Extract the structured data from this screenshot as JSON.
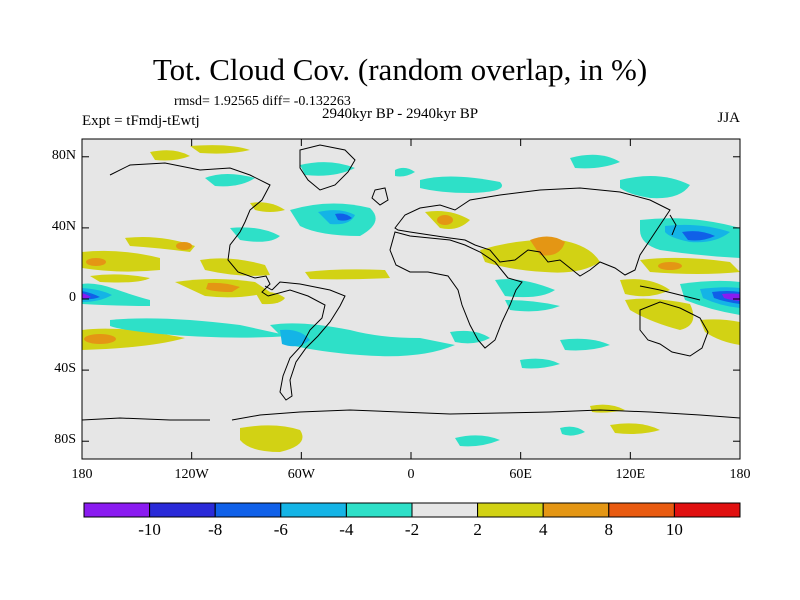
{
  "title": "Tot. Cloud Cov. (random overlap, in %)",
  "stats": "rmsd= 1.92565 diff= -0.132263",
  "expt": "Expt = tFmdj-tEwtj",
  "period": "2940kyr BP - 2940kyr BP",
  "season": "JJA",
  "axes": {
    "x_ticks": [
      {
        "label": "180",
        "lon": -180
      },
      {
        "label": "120W",
        "lon": -120
      },
      {
        "label": "60W",
        "lon": -60
      },
      {
        "label": "0",
        "lon": 0
      },
      {
        "label": "60E",
        "lon": 60
      },
      {
        "label": "120E",
        "lon": 120
      },
      {
        "label": "180",
        "lon": 180
      }
    ],
    "y_ticks": [
      {
        "label": "80N",
        "lat": 80
      },
      {
        "label": "40N",
        "lat": 40
      },
      {
        "label": "0",
        "lat": 0
      },
      {
        "label": "40S",
        "lat": -40
      },
      {
        "label": "80S",
        "lat": -80
      }
    ]
  },
  "colorbar": {
    "labels": [
      "-10",
      "-8",
      "-6",
      "-4",
      "-2",
      "2",
      "4",
      "8",
      "10"
    ],
    "colors": [
      "#8a1bf0",
      "#2a2ad8",
      "#1060e8",
      "#14b4e6",
      "#2ee0c8",
      "#e6e6e6",
      "#d2d214",
      "#e49614",
      "#e85a10",
      "#e01010"
    ]
  },
  "colors": {
    "neutral": "#e6e6e6",
    "coastline": "#000000"
  }
}
